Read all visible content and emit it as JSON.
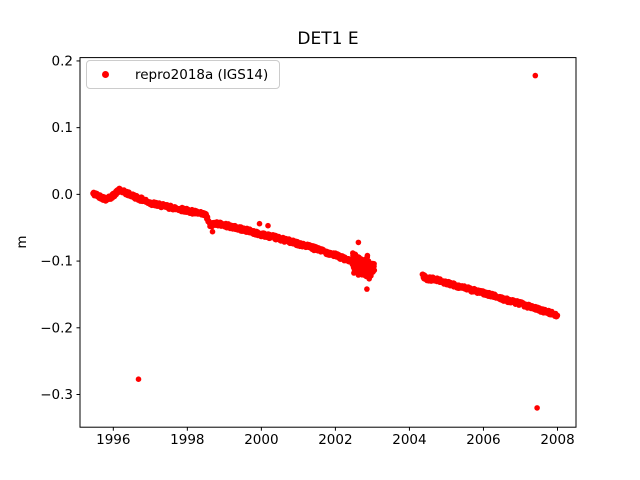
{
  "chart_data": {
    "type": "scatter",
    "title": "DET1 E",
    "xlabel": "",
    "ylabel": "m",
    "xlim": [
      1995.1,
      2008.5
    ],
    "ylim": [
      -0.349,
      0.205
    ],
    "grid": false,
    "background_color": "#ffffff",
    "axis_color": "#000000",
    "xticks": [
      {
        "v": 1996,
        "label": "1996"
      },
      {
        "v": 1998,
        "label": "1998"
      },
      {
        "v": 2000,
        "label": "2000"
      },
      {
        "v": 2002,
        "label": "2002"
      },
      {
        "v": 2004,
        "label": "2004"
      },
      {
        "v": 2006,
        "label": "2006"
      },
      {
        "v": 2008,
        "label": "2008"
      }
    ],
    "yticks": [
      {
        "v": 0.2,
        "label": "0.2"
      },
      {
        "v": 0.1,
        "label": "0.1"
      },
      {
        "v": 0.0,
        "label": "0.0"
      },
      {
        "v": -0.1,
        "label": "−0.1"
      },
      {
        "v": -0.2,
        "label": "−0.2"
      },
      {
        "v": -0.3,
        "label": "−0.3"
      }
    ],
    "legend": {
      "position": "upper-left",
      "entries": [
        {
          "label": "repro2018a (IGS14)",
          "marker": "dot",
          "color": "#ff0000"
        }
      ]
    },
    "series": [
      {
        "name": "repro2018a (IGS14)",
        "color": "#ff0000",
        "marker": "dot",
        "marker_radius_px": 2.8,
        "trend_segments": [
          {
            "points_per_year": 105,
            "noise": 0.0032,
            "anchors": [
              [
                1995.45,
                0.001
              ],
              [
                1995.6,
                -0.002
              ],
              [
                1995.78,
                -0.007
              ],
              [
                1995.95,
                -0.004
              ],
              [
                1996.15,
                0.006
              ],
              [
                1996.35,
                0.002
              ],
              [
                1996.6,
                -0.004
              ],
              [
                1997.0,
                -0.013
              ],
              [
                1997.4,
                -0.018
              ],
              [
                1997.8,
                -0.022
              ],
              [
                1998.2,
                -0.027
              ],
              [
                1998.5,
                -0.031
              ],
              [
                1998.62,
                -0.047
              ],
              [
                1998.75,
                -0.043
              ],
              [
                1999.0,
                -0.046
              ],
              [
                1999.3,
                -0.05
              ],
              [
                1999.6,
                -0.054
              ],
              [
                2000.0,
                -0.06
              ],
              [
                2000.4,
                -0.065
              ],
              [
                2000.8,
                -0.071
              ],
              [
                2001.2,
                -0.077
              ],
              [
                2001.6,
                -0.084
              ],
              [
                2002.0,
                -0.091
              ],
              [
                2002.3,
                -0.098
              ],
              [
                2002.6,
                -0.104
              ],
              [
                2003.0,
                -0.111
              ]
            ]
          },
          {
            "points_per_year": 105,
            "noise": 0.003,
            "anchors": [
              [
                2004.35,
                -0.122
              ],
              [
                2004.5,
                -0.127
              ],
              [
                2004.7,
                -0.127
              ],
              [
                2005.0,
                -0.133
              ],
              [
                2005.4,
                -0.139
              ],
              [
                2005.8,
                -0.145
              ],
              [
                2006.2,
                -0.151
              ],
              [
                2006.6,
                -0.158
              ],
              [
                2007.0,
                -0.164
              ],
              [
                2007.4,
                -0.171
              ],
              [
                2007.7,
                -0.176
              ],
              [
                2008.0,
                -0.181
              ]
            ]
          }
        ],
        "cluster": {
          "x_start": 2002.45,
          "x_end": 2003.05,
          "n": 170,
          "spread": 0.013
        },
        "extra_points": [
          [
            1998.68,
            -0.056
          ],
          [
            1999.95,
            -0.044
          ],
          [
            2000.18,
            -0.047
          ],
          [
            2002.62,
            -0.072
          ],
          [
            2002.85,
            -0.142
          ]
        ],
        "outliers": [
          [
            1996.68,
            -0.277
          ],
          [
            2007.4,
            0.178
          ],
          [
            2007.45,
            -0.32
          ]
        ]
      }
    ]
  }
}
